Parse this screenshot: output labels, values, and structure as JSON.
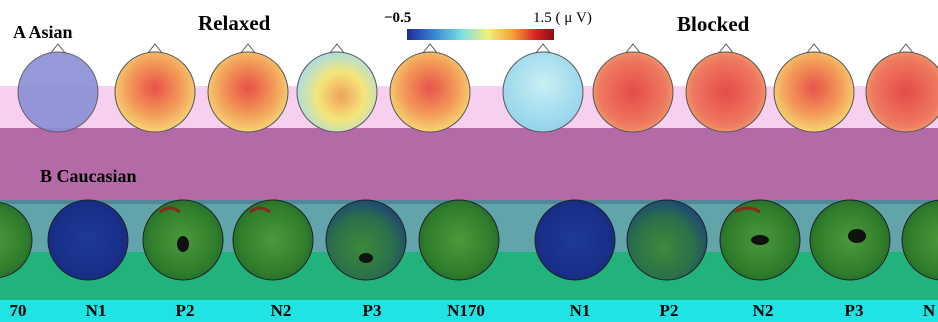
{
  "figure": {
    "panel_a_label": "A  Asian",
    "panel_b_label": "B  Caucasian",
    "condition_relaxed": "Relaxed",
    "condition_blocked": "Blocked",
    "colorbar": {
      "min_label": "−0.5",
      "max_label": "1.5 ( μ V)",
      "colors": [
        "#1d2a9a",
        "#3a8fd6",
        "#7fe0e0",
        "#f2f07a",
        "#f5a03a",
        "#d62020",
        "#8a0f14"
      ]
    },
    "component_labels": [
      "70",
      "N1",
      "P2",
      "N2",
      "P3",
      "N170",
      "N1",
      "P2",
      "N2",
      "P3",
      "N"
    ],
    "colors": {
      "top_band_pink": "#f7c8ec",
      "mid_band_purple": "#b56aa8",
      "mid_band_teal": "#3a8f96",
      "low_band_green": "#22b37d",
      "bottom_band_cyan": "#20e3e3"
    }
  }
}
